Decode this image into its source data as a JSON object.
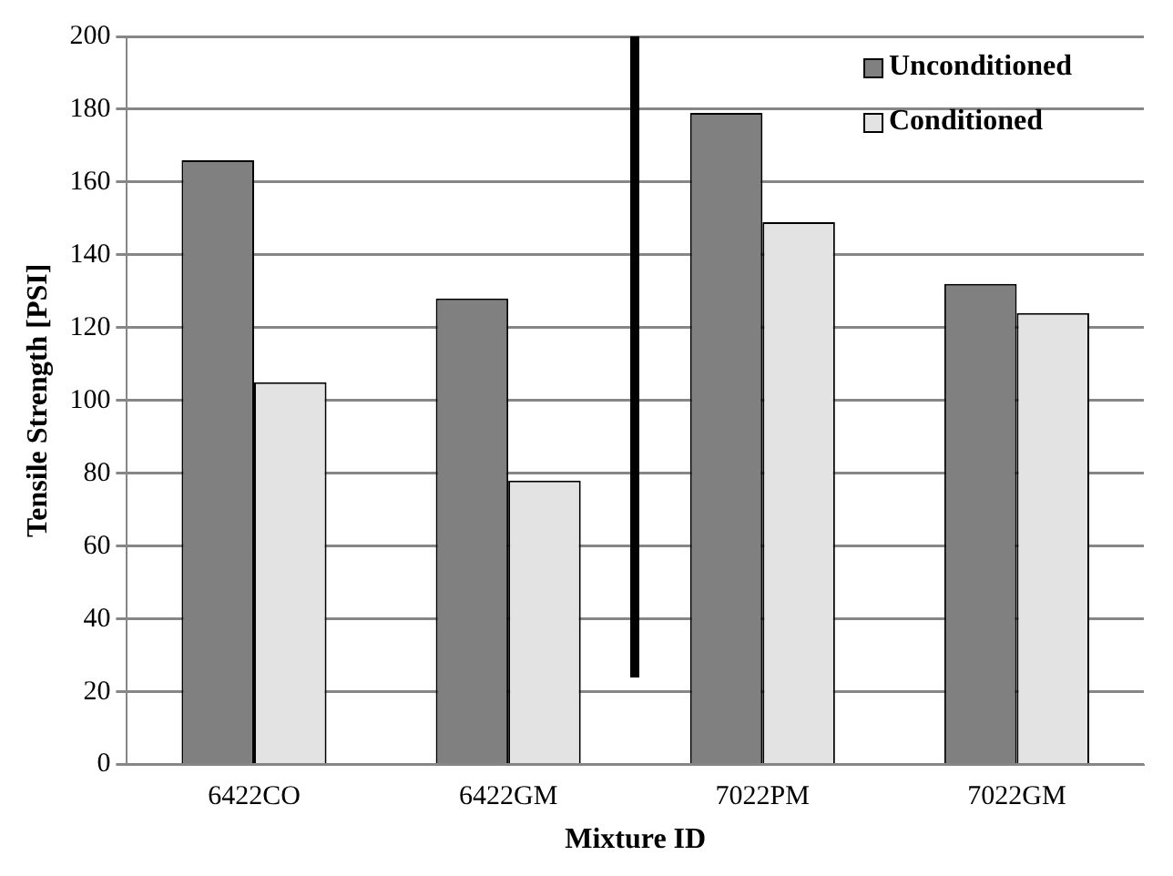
{
  "chart_data": {
    "type": "bar",
    "xlabel": "Mixture ID",
    "ylabel": "Tensile Strength [PSI]",
    "categories": [
      "6422CO",
      "6422GM",
      "7022PM",
      "7022GM"
    ],
    "series": [
      {
        "name": "Unconditioned",
        "color": "#808080",
        "values": [
          166,
          128,
          179,
          132
        ]
      },
      {
        "name": "Conditioned",
        "color": "#e3e3e3",
        "values": [
          105,
          78,
          149,
          124
        ]
      }
    ],
    "ylim": [
      0,
      200
    ],
    "yticks": [
      0,
      20,
      40,
      60,
      80,
      100,
      120,
      140,
      160,
      180,
      200
    ],
    "grid": "y",
    "legend": "top right"
  }
}
